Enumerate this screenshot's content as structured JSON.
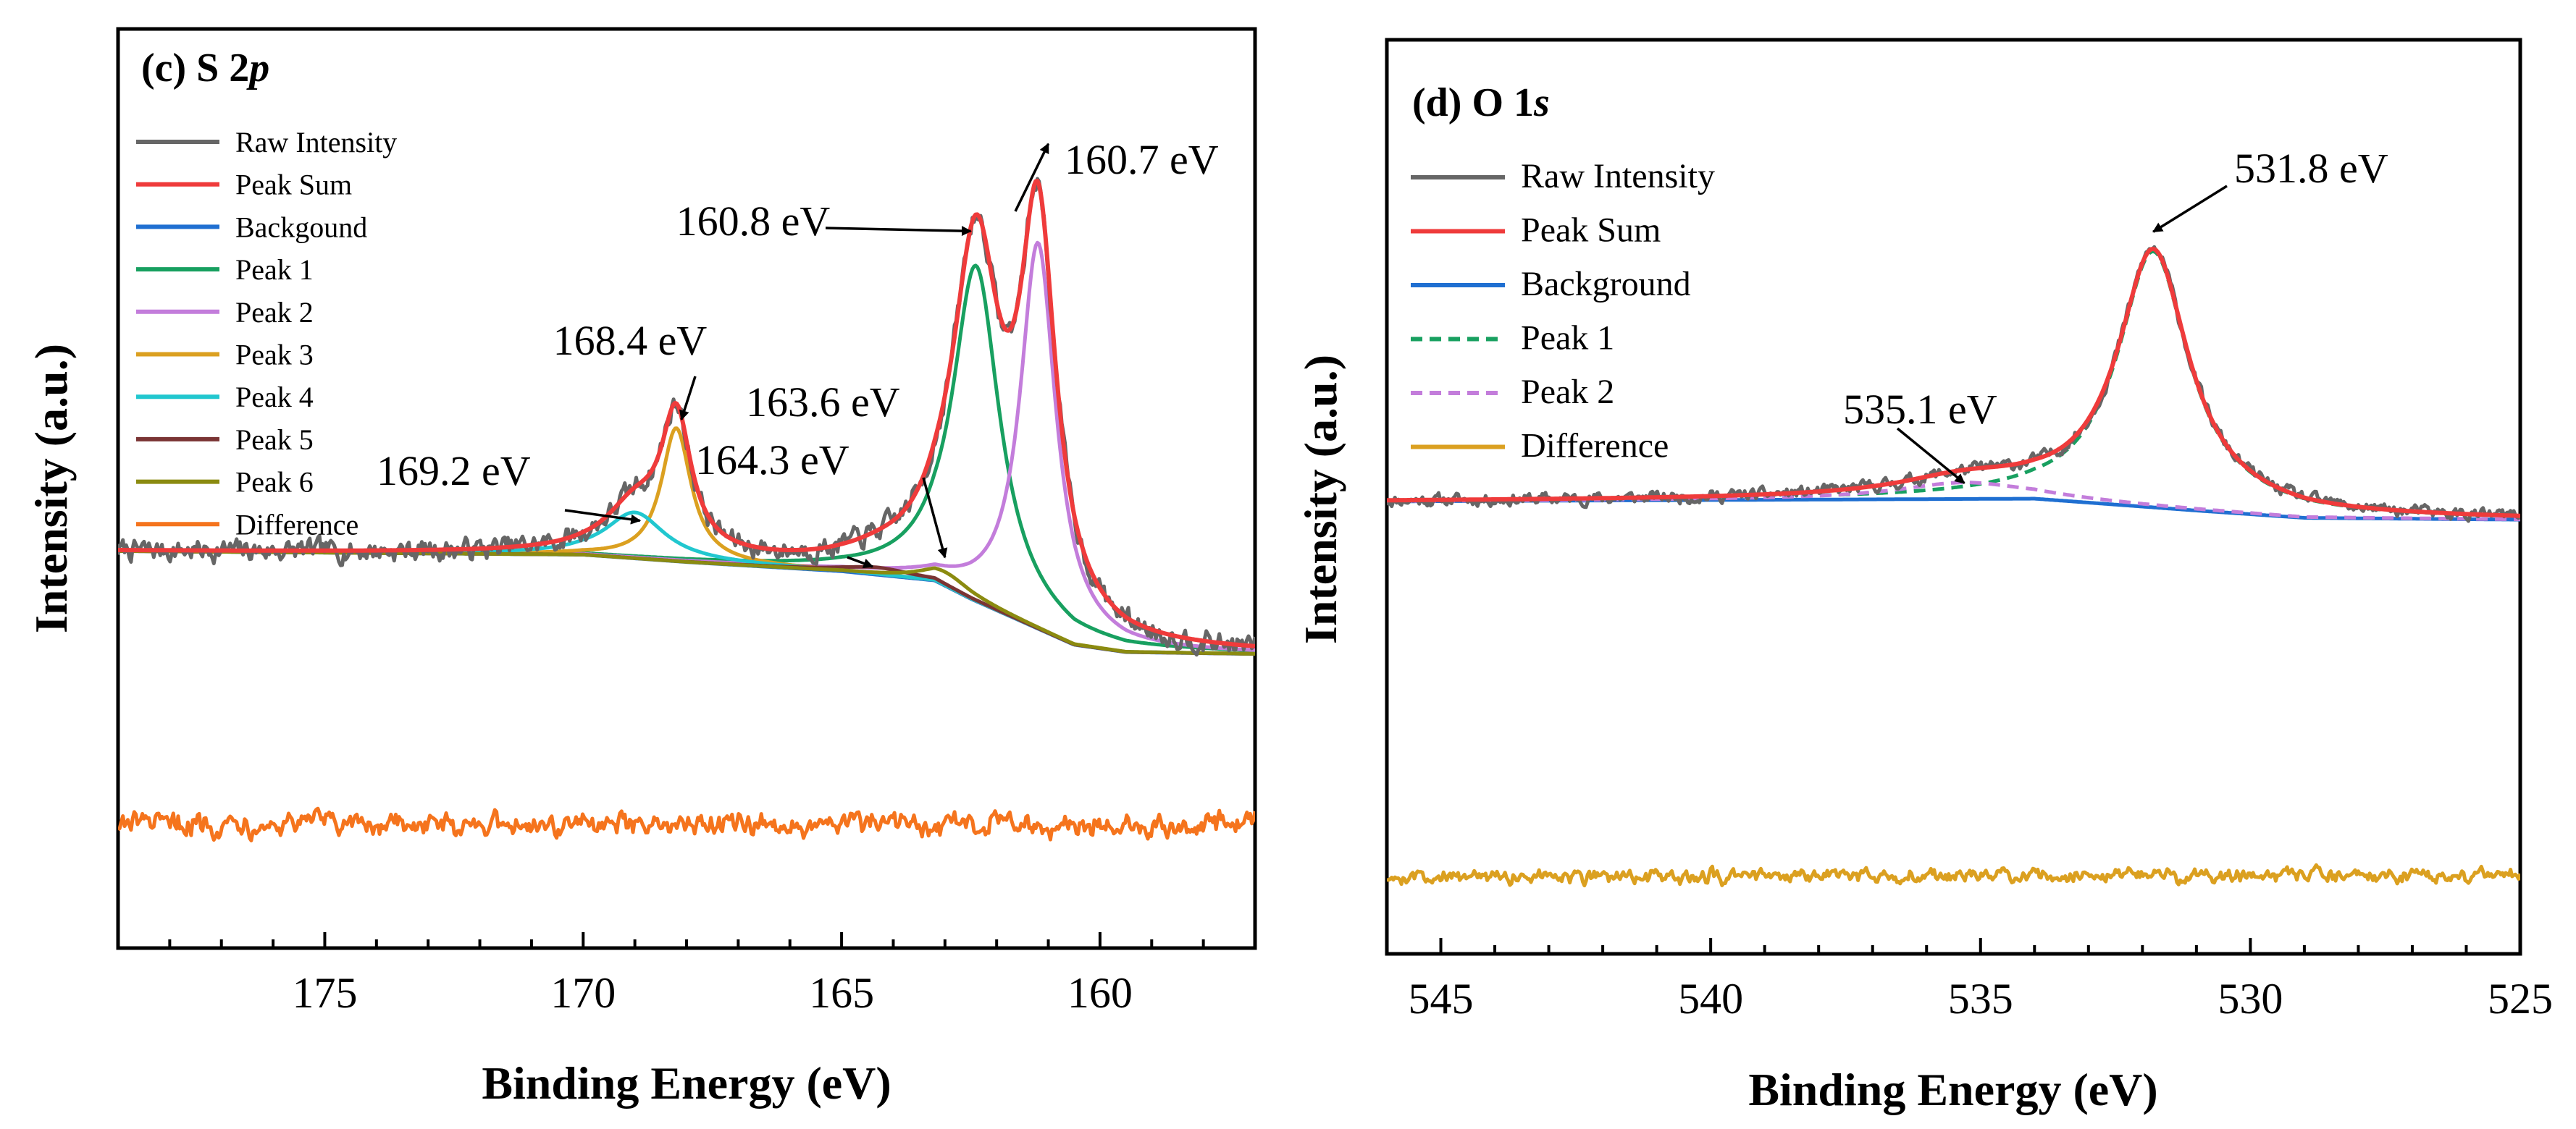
{
  "chart_data": [
    {
      "panel": "c",
      "type": "line",
      "title_prefix": "(c) S 2",
      "title_italic": "p",
      "xlabel": "Binding Energy (eV)",
      "ylabel": "Intensity (a.u.)",
      "xlim": [
        179,
        157
      ],
      "ylim": [
        0,
        100
      ],
      "x_ticks": [
        175,
        170,
        165,
        160
      ],
      "x_tick_labels": [
        "175",
        "170",
        "165",
        "160"
      ],
      "legend_position": "top-left",
      "legend": [
        {
          "label": "Raw Intensity",
          "color": "#666666",
          "dash": "solid"
        },
        {
          "label": "Peak Sum",
          "color": "#ef3b3b",
          "dash": "solid"
        },
        {
          "label": "Backgound",
          "color": "#1f6fd1",
          "dash": "solid"
        },
        {
          "label": "Peak 1",
          "color": "#18a060",
          "dash": "solid"
        },
        {
          "label": "Peak 2",
          "color": "#c37ddb",
          "dash": "solid"
        },
        {
          "label": "Peak 3",
          "color": "#dba020",
          "dash": "solid"
        },
        {
          "label": "Peak 4",
          "color": "#21c7cf",
          "dash": "solid"
        },
        {
          "label": "Peak 5",
          "color": "#7a3434",
          "dash": "solid"
        },
        {
          "label": "Peak 6",
          "color": "#8b8b10",
          "dash": "solid"
        },
        {
          "label": "Difference",
          "color": "#f5741d",
          "dash": "solid"
        }
      ],
      "background": {
        "points": [
          [
            179,
            43.2
          ],
          [
            170,
            42.8
          ],
          [
            168,
            42.0
          ],
          [
            165,
            41.0
          ],
          [
            163.2,
            40.0
          ],
          [
            162.5,
            38.0
          ],
          [
            161.5,
            35.5
          ],
          [
            160.5,
            33.0
          ],
          [
            159.5,
            32.2
          ],
          [
            157,
            32.0
          ]
        ]
      },
      "components": [
        {
          "name": "Peak 1",
          "center": 162.4,
          "height": 36.5,
          "width": 0.55
        },
        {
          "name": "Peak 2",
          "center": 161.2,
          "height": 42.0,
          "width": 0.42
        },
        {
          "name": "Peak 3",
          "center": 168.2,
          "height": 14.5,
          "width": 0.35
        },
        {
          "name": "Peak 4",
          "center": 169.0,
          "height": 5.0,
          "width": 0.7
        },
        {
          "name": "Peak 5",
          "center": 164.3,
          "height": 0.8,
          "width": 0.8
        },
        {
          "name": "Peak 6",
          "center": 163.0,
          "height": 1.5,
          "width": 0.6
        }
      ],
      "difference_baseline": 13.5,
      "annotations": [
        {
          "text": "160.7 eV",
          "x": 161.0,
          "y": 87.5
        },
        {
          "text": "160.8 eV",
          "x": 162.5,
          "y": 78.0
        },
        {
          "text": "168.4 eV",
          "x": 168.1,
          "y": 57.5
        },
        {
          "text": "163.6 eV",
          "x": 163.0,
          "y": 42.5
        },
        {
          "text": "164.3 eV",
          "x": 164.4,
          "y": 41.5
        },
        {
          "text": "169.2 eV",
          "x": 168.9,
          "y": 46.5
        }
      ]
    },
    {
      "panel": "d",
      "type": "line",
      "title_prefix": "(d) O 1",
      "title_italic": "s",
      "xlabel": "Binding Energy (eV)",
      "ylabel": "Intensity (a.u.)",
      "xlim": [
        546,
        525
      ],
      "ylim": [
        0,
        100
      ],
      "x_ticks": [
        545,
        540,
        535,
        530,
        525
      ],
      "x_tick_labels": [
        "545",
        "540",
        "535",
        "530",
        "525"
      ],
      "legend_position": "top-left",
      "legend": [
        {
          "label": "Raw Intensity",
          "color": "#666666",
          "dash": "solid"
        },
        {
          "label": "Peak Sum",
          "color": "#ef3b3b",
          "dash": "solid"
        },
        {
          "label": "Background",
          "color": "#1f6fd1",
          "dash": "solid"
        },
        {
          "label": "Peak 1",
          "color": "#18a060",
          "dash": "dashed"
        },
        {
          "label": "Peak 2",
          "color": "#c37ddb",
          "dash": "dashed"
        },
        {
          "label": "Difference",
          "color": "#dba020",
          "dash": "solid"
        }
      ],
      "background": {
        "points": [
          [
            546,
            49.5
          ],
          [
            534,
            49.8
          ],
          [
            531,
            48.5
          ],
          [
            529,
            47.7
          ],
          [
            525,
            47.5
          ]
        ]
      },
      "components": [
        {
          "name": "Peak 1",
          "center": 531.8,
          "height": 28.0,
          "width": 0.8
        },
        {
          "name": "Peak 2",
          "center": 535.3,
          "height": 1.8,
          "width": 1.5
        }
      ],
      "difference_baseline": 8.5,
      "annotations": [
        {
          "text": "531.8 eV",
          "x": 531.8,
          "y": 79.0
        },
        {
          "text": "535.1 eV",
          "x": 535.3,
          "y": 51.5
        }
      ]
    }
  ]
}
